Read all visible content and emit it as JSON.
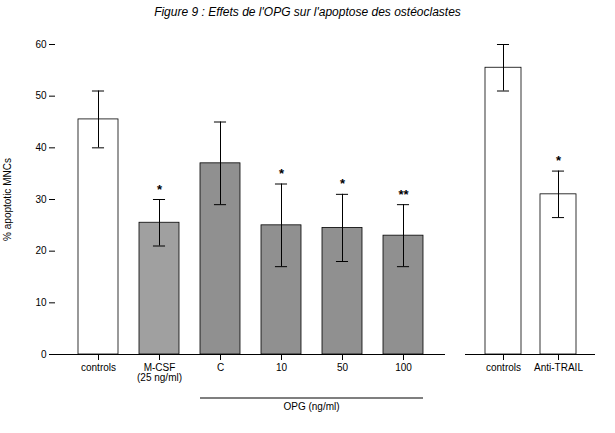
{
  "chart_data": [
    {
      "type": "bar",
      "title": "Figure 9 : Effets de l'OPG sur l'apoptose des ostéoclastes",
      "ylabel": "% apoptotic MNCs",
      "categories": [
        "controls",
        "M-CSF\n(25 ng/ml)",
        "C",
        "10",
        "50",
        "100"
      ],
      "values": [
        45.5,
        25.5,
        37.0,
        25.0,
        24.5,
        23.0
      ],
      "errors": [
        5.5,
        4.5,
        8.0,
        8.0,
        6.5,
        6.0
      ],
      "colors": [
        "white",
        "#a0a0a0",
        "#909090",
        "#909090",
        "#909090",
        "#909090"
      ],
      "annotations": [
        {
          "category": "M-CSF\n(25 ng/ml)",
          "text": "*"
        },
        {
          "category": "10",
          "text": "*"
        },
        {
          "category": "50",
          "text": "*"
        },
        {
          "category": "100",
          "text": "**"
        },
        {
          "text": "OPG (ng/ml)",
          "from": "C",
          "to": "100"
        }
      ],
      "ylim": [
        0,
        60
      ],
      "yticks": [
        0,
        10,
        20,
        30,
        40,
        50,
        60
      ]
    },
    {
      "type": "bar",
      "categories": [
        "controls",
        "Anti-TRAIL"
      ],
      "values": [
        55.5,
        31.0
      ],
      "errors": [
        4.5,
        4.5
      ],
      "colors": [
        "white",
        "white"
      ],
      "annotations": [
        {
          "category": "Anti-TRAIL",
          "text": "*"
        }
      ],
      "ylim": [
        0,
        60
      ],
      "yticks": [
        0,
        10,
        20,
        30,
        40,
        50,
        60
      ],
      "tick_labels": "x"
    }
  ]
}
